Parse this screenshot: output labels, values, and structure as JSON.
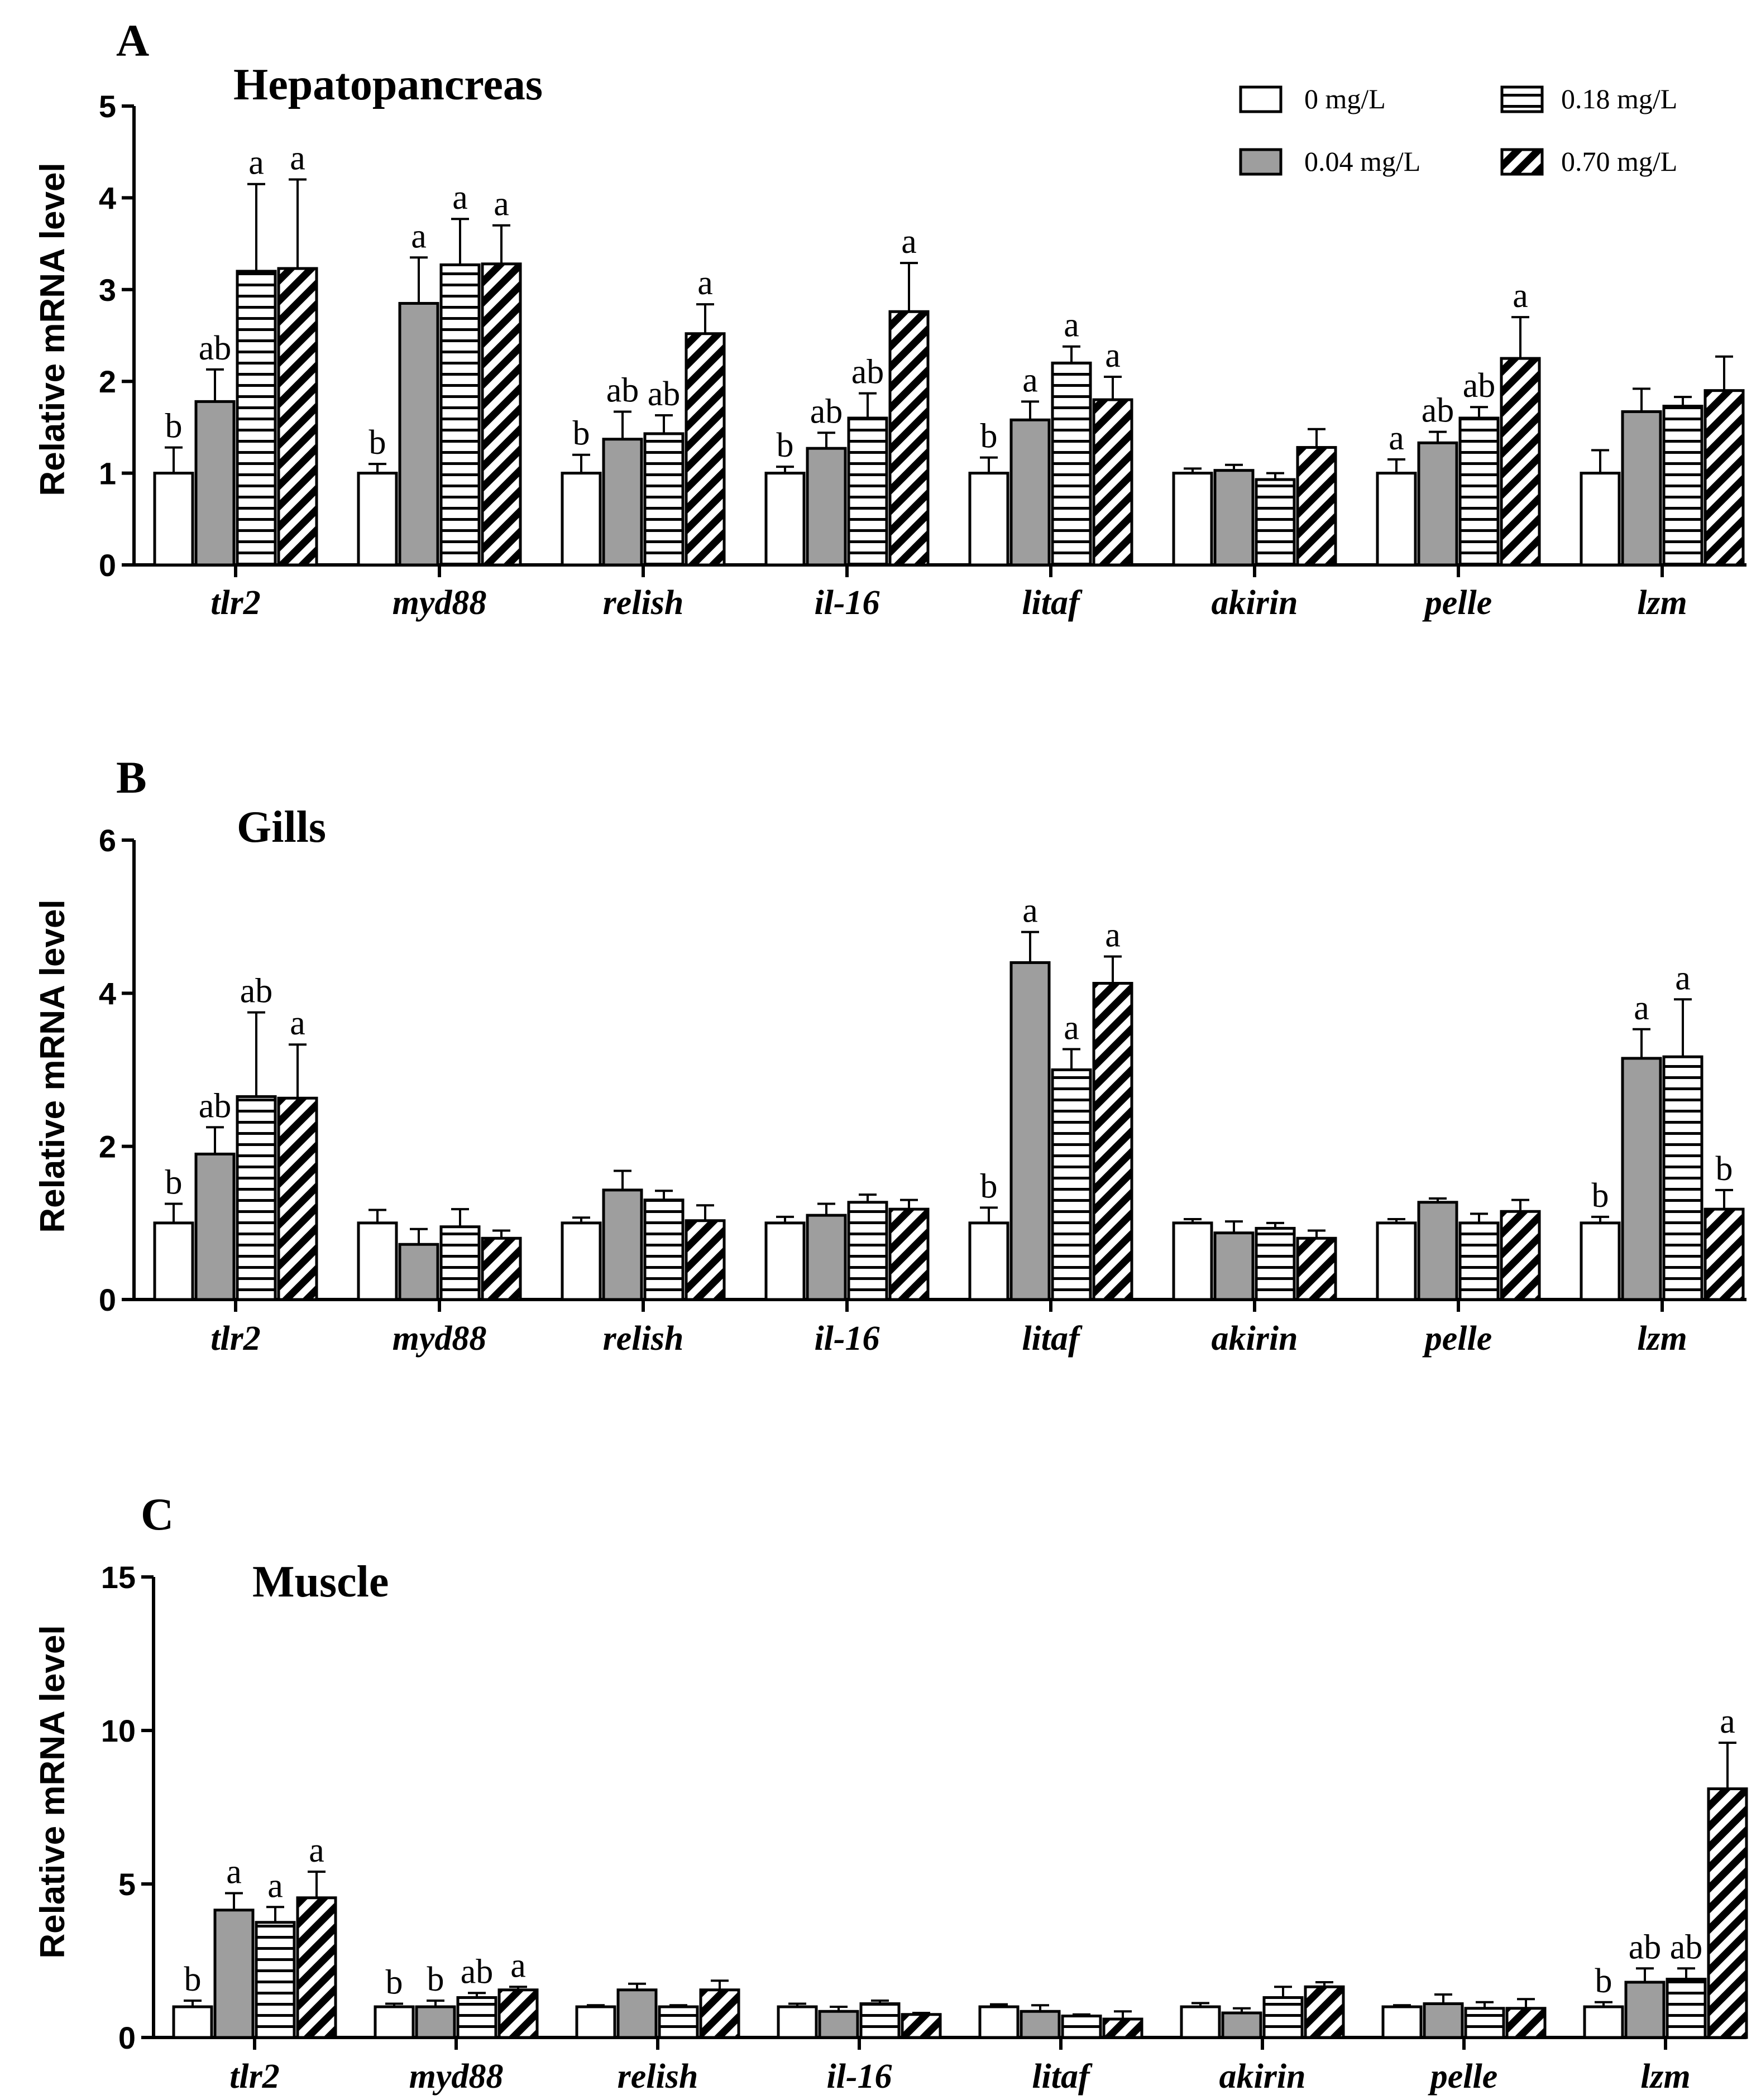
{
  "chart_data": [
    {
      "panel": "A",
      "title": "Hepatopancreas",
      "type": "bar",
      "ylabel": "Relative mRNA level",
      "ylim": [
        0,
        5
      ],
      "yticks": [
        0,
        1,
        2,
        3,
        4,
        5
      ],
      "categories": [
        "tlr2",
        "myd88",
        "relish",
        "il-16",
        "litaf",
        "akirin",
        "pelle",
        "lzm"
      ],
      "series": [
        {
          "name": "0 mg/L",
          "values": [
            1.0,
            1.0,
            1.0,
            1.0,
            1.0,
            1.0,
            1.0,
            1.0
          ],
          "errors": [
            0.28,
            0.1,
            0.2,
            0.07,
            0.17,
            0.05,
            0.15,
            0.25
          ],
          "labels": [
            "b",
            "b",
            "b",
            "b",
            "b",
            "",
            "a",
            ""
          ]
        },
        {
          "name": "0.04 mg/L",
          "values": [
            1.78,
            2.85,
            1.37,
            1.27,
            1.58,
            1.03,
            1.33,
            1.67
          ],
          "errors": [
            0.35,
            0.5,
            0.3,
            0.17,
            0.2,
            0.06,
            0.12,
            0.25
          ],
          "labels": [
            "ab",
            "a",
            "ab",
            "ab",
            "a",
            "",
            "ab",
            ""
          ]
        },
        {
          "name": "0.18 mg/L",
          "values": [
            3.2,
            3.27,
            1.43,
            1.6,
            2.2,
            0.93,
            1.6,
            1.73
          ],
          "errors": [
            0.95,
            0.5,
            0.2,
            0.27,
            0.18,
            0.07,
            0.12,
            0.1
          ],
          "labels": [
            "a",
            "a",
            "ab",
            "ab",
            "a",
            "",
            "ab",
            ""
          ]
        },
        {
          "name": "0.70 mg/L",
          "values": [
            3.23,
            3.28,
            2.52,
            2.76,
            1.8,
            1.28,
            2.25,
            1.9
          ],
          "errors": [
            0.97,
            0.42,
            0.32,
            0.53,
            0.25,
            0.2,
            0.45,
            0.37
          ],
          "labels": [
            "a",
            "a",
            "a",
            "a",
            "a",
            "",
            "a",
            ""
          ]
        }
      ]
    },
    {
      "panel": "B",
      "title": "Gills",
      "type": "bar",
      "ylabel": "Relative mRNA level",
      "ylim": [
        0,
        6
      ],
      "yticks": [
        0,
        2,
        4,
        6
      ],
      "categories": [
        "tlr2",
        "myd88",
        "relish",
        "il-16",
        "litaf",
        "akirin",
        "pelle",
        "lzm"
      ],
      "series": [
        {
          "name": "0 mg/L",
          "values": [
            1.0,
            1.0,
            1.0,
            1.0,
            1.0,
            1.0,
            1.0,
            1.0
          ],
          "errors": [
            0.25,
            0.17,
            0.07,
            0.08,
            0.2,
            0.05,
            0.05,
            0.08
          ],
          "labels": [
            "b",
            "",
            "",
            "",
            "b",
            "",
            "",
            "b"
          ]
        },
        {
          "name": "0.04 mg/L",
          "values": [
            1.9,
            0.72,
            1.43,
            1.1,
            4.4,
            0.87,
            1.27,
            3.15
          ],
          "errors": [
            0.35,
            0.2,
            0.25,
            0.15,
            0.4,
            0.15,
            0.05,
            0.38
          ],
          "labels": [
            "ab",
            "",
            "",
            "",
            "a",
            "",
            "",
            "a"
          ]
        },
        {
          "name": "0.18 mg/L",
          "values": [
            2.65,
            0.95,
            1.3,
            1.27,
            3.0,
            0.93,
            1.0,
            3.17
          ],
          "errors": [
            1.1,
            0.23,
            0.12,
            0.1,
            0.27,
            0.07,
            0.12,
            0.75
          ],
          "labels": [
            "ab",
            "",
            "",
            "",
            "a",
            "",
            "",
            "a"
          ]
        },
        {
          "name": "0.70 mg/L",
          "values": [
            2.63,
            0.8,
            1.03,
            1.18,
            4.13,
            0.8,
            1.15,
            1.18
          ],
          "errors": [
            0.7,
            0.1,
            0.2,
            0.12,
            0.35,
            0.1,
            0.15,
            0.25
          ],
          "labels": [
            "a",
            "",
            "",
            "",
            "a",
            "",
            "",
            "b"
          ]
        }
      ]
    },
    {
      "panel": "C",
      "title": "Muscle",
      "type": "bar",
      "ylabel": "Relative mRNA level",
      "ylim": [
        0,
        15
      ],
      "yticks": [
        0,
        5,
        10,
        15
      ],
      "categories": [
        "tlr2",
        "myd88",
        "relish",
        "il-16",
        "litaf",
        "akirin",
        "pelle",
        "lzm"
      ],
      "series": [
        {
          "name": "0 mg/L",
          "values": [
            1.0,
            1.0,
            1.0,
            1.0,
            1.0,
            1.0,
            1.0,
            1.0
          ],
          "errors": [
            0.2,
            0.1,
            0.05,
            0.1,
            0.08,
            0.12,
            0.05,
            0.15
          ],
          "labels": [
            "b",
            "b",
            "",
            "",
            "",
            "",
            "",
            "b"
          ]
        },
        {
          "name": "0.04 mg/L",
          "values": [
            4.15,
            1.0,
            1.55,
            0.85,
            0.85,
            0.8,
            1.1,
            1.8
          ],
          "errors": [
            0.55,
            0.2,
            0.2,
            0.15,
            0.2,
            0.15,
            0.3,
            0.45
          ],
          "labels": [
            "a",
            "b",
            "",
            "",
            "",
            "",
            "",
            "ab"
          ]
        },
        {
          "name": "0.18 mg/L",
          "values": [
            3.75,
            1.3,
            1.0,
            1.1,
            0.7,
            1.3,
            0.95,
            1.9
          ],
          "errors": [
            0.5,
            0.15,
            0.05,
            0.1,
            0.05,
            0.35,
            0.2,
            0.35
          ],
          "labels": [
            "a",
            "ab",
            "",
            "",
            "",
            "",
            "",
            "ab"
          ]
        },
        {
          "name": "0.70 mg/L",
          "values": [
            4.55,
            1.55,
            1.55,
            0.75,
            0.6,
            1.65,
            0.95,
            8.1
          ],
          "errors": [
            0.85,
            0.1,
            0.3,
            0.05,
            0.25,
            0.15,
            0.3,
            1.5
          ],
          "labels": [
            "a",
            "a",
            "",
            "",
            "",
            "",
            "",
            "a"
          ]
        }
      ]
    }
  ],
  "legend": {
    "entries": [
      {
        "label": "0 mg/L",
        "pattern": "white"
      },
      {
        "label": "0.18 mg/L",
        "pattern": "horizontal-lines"
      },
      {
        "label": "0.04 mg/L",
        "pattern": "gray"
      },
      {
        "label": "0.70 mg/L",
        "pattern": "diagonal-stripes"
      }
    ]
  },
  "colors": {
    "gray_fill": "#9e9e9e",
    "stroke": "#000000"
  }
}
